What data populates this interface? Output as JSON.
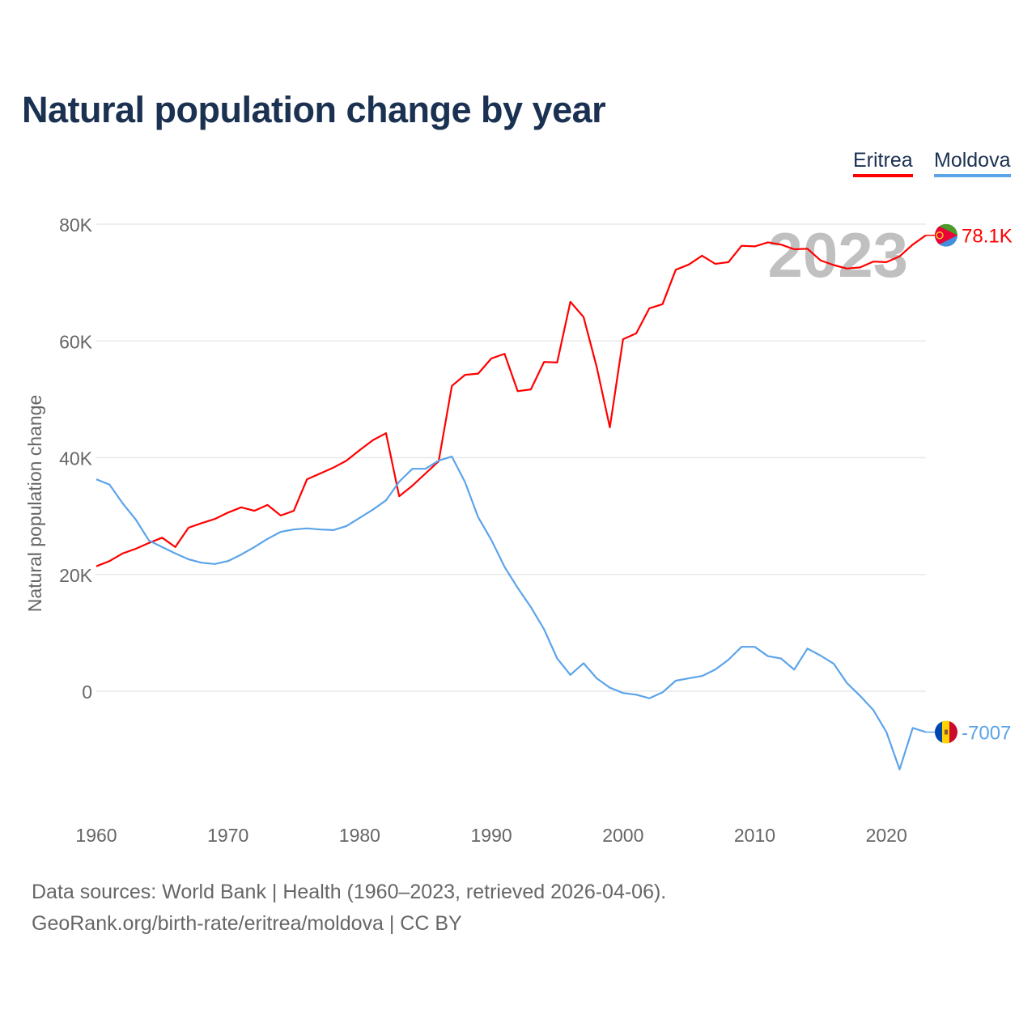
{
  "title": "Natural population change by year",
  "footer": {
    "sources": "Data sources: World Bank | Health (1960–2023, retrieved 2026-04-06).",
    "credit": "GeoRank.org/birth-rate/eritrea/moldova | CC BY"
  },
  "chart_data": {
    "type": "line",
    "title": "Natural population change by year",
    "xlabel": "",
    "ylabel": "Natural population change",
    "year_watermark": "2023",
    "x": [
      1960,
      1961,
      1962,
      1963,
      1964,
      1965,
      1966,
      1967,
      1968,
      1969,
      1970,
      1971,
      1972,
      1973,
      1974,
      1975,
      1976,
      1977,
      1978,
      1979,
      1980,
      1981,
      1982,
      1983,
      1984,
      1985,
      1986,
      1987,
      1988,
      1989,
      1990,
      1991,
      1992,
      1993,
      1994,
      1995,
      1996,
      1997,
      1998,
      1999,
      2000,
      2001,
      2002,
      2003,
      2004,
      2005,
      2006,
      2007,
      2008,
      2009,
      2010,
      2011,
      2012,
      2013,
      2014,
      2015,
      2016,
      2017,
      2018,
      2019,
      2020,
      2021,
      2022,
      2023
    ],
    "xlim": [
      1960,
      2023
    ],
    "ylim": [
      -20000,
      80000
    ],
    "x_ticks": [
      "1960",
      "1970",
      "1980",
      "1990",
      "2000",
      "2010",
      "2020"
    ],
    "y_ticks": [
      {
        "value": 0,
        "label": "0"
      },
      {
        "value": 20000,
        "label": "20K"
      },
      {
        "value": 40000,
        "label": "40K"
      },
      {
        "value": 60000,
        "label": "60K"
      },
      {
        "value": 80000,
        "label": "80K"
      }
    ],
    "grid": true,
    "legend_position": "top-right",
    "series": [
      {
        "name": "Eritrea",
        "color": "#ff0000",
        "end_label": "78.1K",
        "values": [
          21400,
          22300,
          23600,
          24400,
          25400,
          26300,
          24700,
          28000,
          28800,
          29500,
          30600,
          31500,
          30900,
          31900,
          30100,
          30900,
          36300,
          37300,
          38300,
          39500,
          41300,
          43000,
          44200,
          33400,
          35200,
          37300,
          39400,
          52300,
          54200,
          54400,
          57000,
          57800,
          51400,
          51700,
          56400,
          56300,
          66700,
          64100,
          55500,
          45200,
          60300,
          61300,
          65600,
          66300,
          72200,
          73100,
          74600,
          73200,
          73500,
          76300,
          76200,
          76900,
          76500,
          75700,
          75800,
          73800,
          73000,
          72400,
          72600,
          73600,
          73500,
          74500,
          76500,
          78100
        ]
      },
      {
        "name": "Moldova",
        "color": "#5ba4ea",
        "end_label": "-7007",
        "values": [
          36300,
          35400,
          32200,
          29400,
          25800,
          24700,
          23600,
          22600,
          22000,
          21800,
          22300,
          23400,
          24700,
          26100,
          27300,
          27700,
          27900,
          27700,
          27600,
          28300,
          29700,
          31100,
          32700,
          35900,
          38100,
          38100,
          39500,
          40200,
          35800,
          29800,
          25900,
          21300,
          17700,
          14400,
          10600,
          5600,
          2800,
          4800,
          2200,
          600,
          -300,
          -600,
          -1200,
          -200,
          1800,
          2200,
          2600,
          3700,
          5400,
          7600,
          7600,
          6000,
          5600,
          3700,
          7300,
          6100,
          4700,
          1400,
          -800,
          -3200,
          -7000,
          -13400,
          -6300,
          -7007
        ]
      }
    ]
  }
}
